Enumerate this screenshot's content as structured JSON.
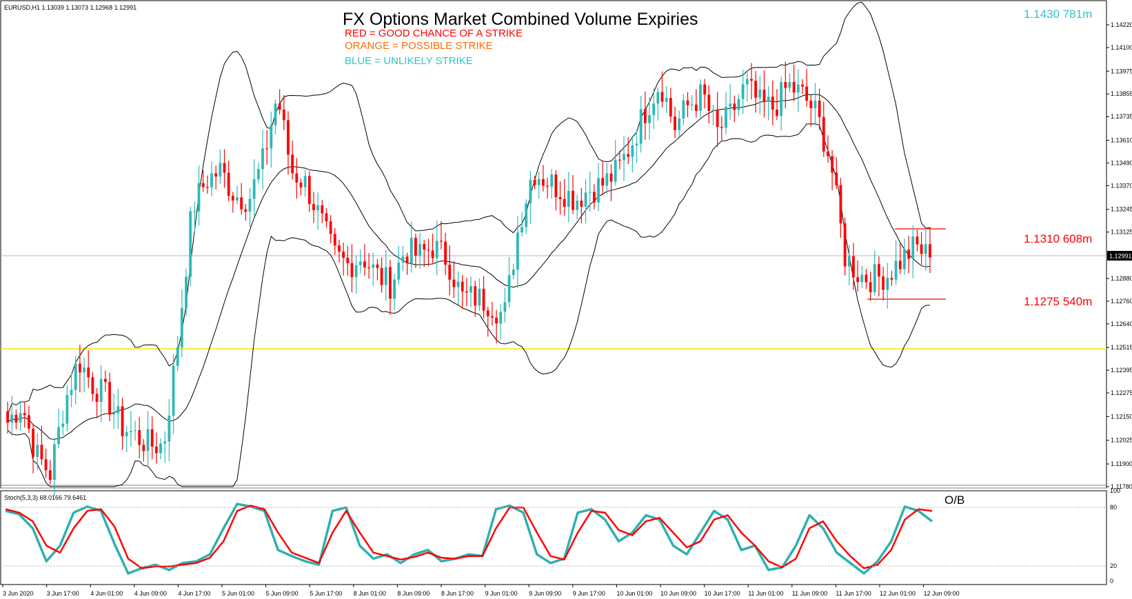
{
  "header": {
    "info": "EURUSD,H1  1.13039 1.13073 1.12968 1.12991"
  },
  "title": "FX Options Market Combined Volume Expiries",
  "legend": [
    {
      "text": "RED = GOOD CHANCE OF A STRIKE",
      "color": "#ff0000"
    },
    {
      "text": "ORANGE = POSSIBLE STRIKE",
      "color": "#ff6a00"
    },
    {
      "text": "BLUE = UNLIKELY STRIKE",
      "color": "#2ec4cc"
    }
  ],
  "annotations": [
    {
      "text": "1.1430 781m",
      "color": "#2ec4cc"
    },
    {
      "text": "1.1310 608m",
      "color": "#ff0000"
    },
    {
      "text": "1.1275 540m",
      "color": "#ff0000"
    }
  ],
  "current_price_label": "1.12991",
  "stoch_panel": {
    "header": "Stoch(5,3,3) 68.0166 79.6461",
    "ob_label": "O/B"
  },
  "colors": {
    "bull": "#2eb8b8",
    "bear": "#ff0000",
    "bands": "#000000",
    "level_line": "#ffe000",
    "price_line": "#a9b4c2",
    "stoch_main": "#2eb0b0",
    "stoch_signal": "#ff0000"
  },
  "chart_data": [
    {
      "type": "candlestick",
      "symbol": "EURUSD",
      "timeframe": "H1",
      "ylim": [
        1.1178,
        1.1428
      ],
      "y_ticks": [
        "1.14220",
        "1.14100",
        "1.13975",
        "1.13855",
        "1.13735",
        "1.13610",
        "1.13490",
        "1.13370",
        "1.13245",
        "1.13125",
        "1.12880",
        "1.12760",
        "1.12640",
        "1.12515",
        "1.12395",
        "1.12275",
        "1.12150",
        "1.12025",
        "1.11900",
        "1.11780"
      ],
      "x_ticks": [
        "3 Jun 2020",
        "3 Jun 17:00",
        "4 Jun 01:00",
        "4 Jun 09:00",
        "4 Jun 17:00",
        "5 Jun 01:00",
        "5 Jun 09:00",
        "5 Jun 17:00",
        "8 Jun 01:00",
        "8 Jun 09:00",
        "8 Jun 17:00",
        "9 Jun 01:00",
        "9 Jun 09:00",
        "9 Jun 17:00",
        "10 Jun 01:00",
        "10 Jun 09:00",
        "10 Jun 17:00",
        "11 Jun 01:00",
        "11 Jun 09:00",
        "11 Jun 17:00",
        "12 Jun 01:00",
        "12 Jun 09:00"
      ],
      "close_path": [
        1.1212,
        1.1222,
        1.1195,
        1.1185,
        1.1222,
        1.1245,
        1.1232,
        1.1225,
        1.121,
        1.1205,
        1.12,
        1.12,
        1.1255,
        1.1325,
        1.134,
        1.1345,
        1.1332,
        1.133,
        1.135,
        1.1385,
        1.1345,
        1.1338,
        1.132,
        1.13,
        1.1295,
        1.13,
        1.129,
        1.1285,
        1.1303,
        1.13,
        1.1305,
        1.1298,
        1.1278,
        1.1278,
        1.1275,
        1.1268,
        1.1315,
        1.1345,
        1.134,
        1.1335,
        1.133,
        1.1335,
        1.1338,
        1.1345,
        1.136,
        1.1378,
        1.1392,
        1.1368,
        1.138,
        1.1385,
        1.1365,
        1.1375,
        1.139,
        1.138,
        1.1378,
        1.139,
        1.1385,
        1.1375,
        1.135,
        1.13,
        1.129,
        1.1288,
        1.129,
        1.1298,
        1.1305,
        1.1299
      ],
      "horizontal_levels": [
        {
          "price": 1.12991,
          "label": "1.12991"
        },
        {
          "price": 1.125
        },
        {
          "price": 1.1313
        },
        {
          "price": 1.1276
        }
      ]
    },
    {
      "type": "line",
      "name": "Stoch(5,3,3)",
      "ylim": [
        0,
        100
      ],
      "y_ticks": [
        0,
        20,
        80,
        100
      ],
      "levels": [
        20,
        80
      ],
      "series": [
        {
          "name": "main",
          "values": [
            80,
            76,
            60,
            22,
            40,
            78,
            85,
            80,
            42,
            8,
            14,
            18,
            12,
            20,
            22,
            30,
            60,
            88,
            85,
            80,
            35,
            28,
            22,
            18,
            80,
            84,
            40,
            25,
            30,
            20,
            30,
            35,
            22,
            25,
            30,
            28,
            82,
            86,
            78,
            30,
            20,
            25,
            78,
            82,
            70,
            45,
            55,
            75,
            70,
            40,
            30,
            55,
            80,
            70,
            35,
            40,
            12,
            15,
            40,
            75,
            60,
            32,
            20,
            8,
            22,
            45,
            85,
            80,
            68
          ]
        },
        {
          "name": "signal",
          "values": [
            82,
            78,
            68,
            40,
            32,
            60,
            80,
            82,
            62,
            25,
            14,
            16,
            16,
            18,
            20,
            26,
            45,
            80,
            86,
            82,
            55,
            32,
            26,
            20,
            55,
            80,
            55,
            32,
            28,
            24,
            27,
            32,
            26,
            25,
            28,
            28,
            60,
            84,
            84,
            55,
            28,
            24,
            55,
            80,
            78,
            58,
            52,
            68,
            72,
            55,
            38,
            45,
            70,
            75,
            55,
            40,
            22,
            15,
            25,
            60,
            68,
            45,
            28,
            14,
            18,
            35,
            70,
            82,
            80
          ]
        }
      ]
    }
  ]
}
